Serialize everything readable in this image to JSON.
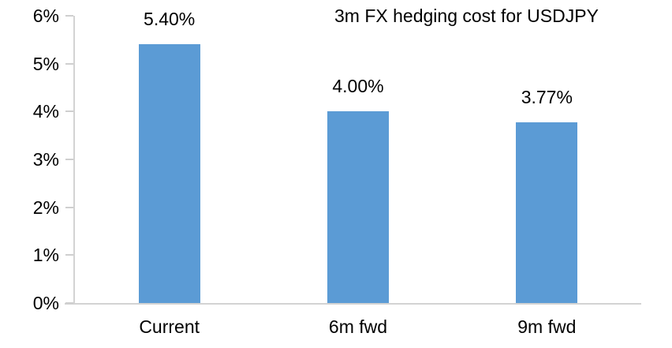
{
  "chart_data": {
    "type": "bar",
    "title": "3m FX hedging cost for USDJPY",
    "categories": [
      "Current",
      "6m fwd",
      "9m fwd"
    ],
    "values": [
      5.4,
      4.0,
      3.77
    ],
    "data_labels": [
      "5.40%",
      "4.00%",
      "3.77%"
    ],
    "xlabel": "",
    "ylabel": "",
    "ylim": [
      0,
      6
    ],
    "ytick_interval": 1,
    "ytick_labels": [
      "0%",
      "1%",
      "2%",
      "3%",
      "4%",
      "5%",
      "6%"
    ],
    "grid": false,
    "legend_position": "none",
    "bar_color": "#5b9bd5",
    "axis_color": "#d3d3d3",
    "text_color": "#000000",
    "background_color": "#ffffff"
  }
}
